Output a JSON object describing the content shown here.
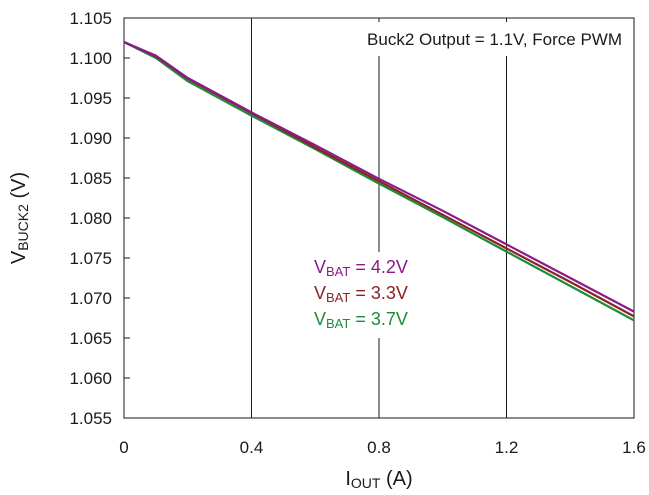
{
  "chart_data": {
    "type": "line",
    "title": "",
    "annotation": "Buck2 Output = 1.1V, Force PWM",
    "xlabel": {
      "main": "I",
      "sub": "OUT",
      "unit": " (A)"
    },
    "ylabel": {
      "main": "V",
      "sub": "BUCK2",
      "unit": " (V)"
    },
    "xlim": [
      0,
      1.6
    ],
    "ylim": [
      1.055,
      1.105
    ],
    "x_ticks": [
      0,
      0.4,
      0.8,
      1.2,
      1.6
    ],
    "x_tick_labels": [
      "0",
      "0.4",
      "0.8",
      "1.2",
      "1.6"
    ],
    "y_ticks": [
      1.055,
      1.06,
      1.065,
      1.07,
      1.075,
      1.08,
      1.085,
      1.09,
      1.095,
      1.1,
      1.105
    ],
    "y_tick_labels": [
      "1.055",
      "1.060",
      "1.065",
      "1.070",
      "1.075",
      "1.080",
      "1.085",
      "1.090",
      "1.095",
      "1.100",
      "1.105"
    ],
    "grid": {
      "vertical_major": true,
      "horizontal": false
    },
    "series": [
      {
        "name": "4.2V",
        "label_main": "V",
        "label_sub": "BAT",
        "label_rest": " = 4.2V",
        "color": "#8b1a8b",
        "points": [
          [
            0,
            1.102
          ],
          [
            0.1,
            1.1003
          ],
          [
            0.2,
            1.0975
          ],
          [
            0.4,
            1.0932
          ],
          [
            0.6,
            1.0891
          ],
          [
            0.8,
            1.0849
          ],
          [
            1.0,
            1.0809
          ],
          [
            1.2,
            1.0767
          ],
          [
            1.4,
            1.0725
          ],
          [
            1.6,
            1.0683
          ]
        ]
      },
      {
        "name": "3.3V",
        "label_main": "V",
        "label_sub": "BAT",
        "label_rest": " = 3.3V",
        "color": "#8b2323",
        "points": [
          [
            0,
            1.102
          ],
          [
            0.1,
            1.1002
          ],
          [
            0.2,
            1.0974
          ],
          [
            0.4,
            1.0931
          ],
          [
            0.6,
            1.0888
          ],
          [
            0.8,
            1.0846
          ],
          [
            1.0,
            1.0804
          ],
          [
            1.2,
            1.0762
          ],
          [
            1.4,
            1.072
          ],
          [
            1.6,
            1.0677
          ]
        ]
      },
      {
        "name": "3.7V",
        "label_main": "V",
        "label_sub": "BAT",
        "label_rest": " = 3.7V",
        "color": "#1f8b3a",
        "points": [
          [
            0,
            1.102
          ],
          [
            0.1,
            1.1
          ],
          [
            0.2,
            1.0971
          ],
          [
            0.4,
            1.0928
          ],
          [
            0.6,
            1.0886
          ],
          [
            0.8,
            1.0843
          ],
          [
            1.0,
            1.0801
          ],
          [
            1.2,
            1.0758
          ],
          [
            1.4,
            1.0715
          ],
          [
            1.6,
            1.0672
          ]
        ]
      }
    ]
  }
}
